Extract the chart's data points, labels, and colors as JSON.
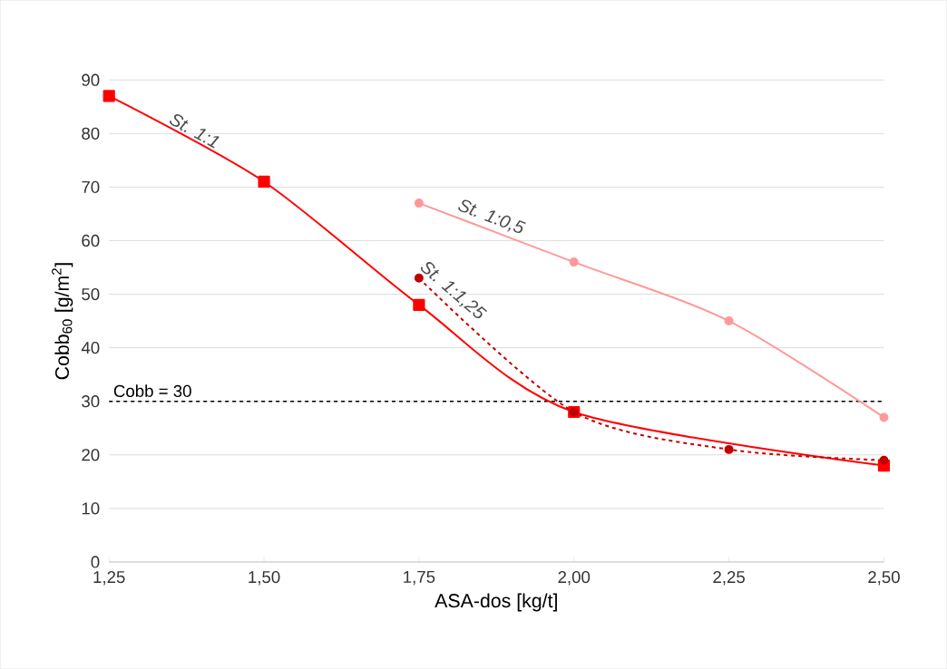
{
  "chart_data": {
    "type": "line",
    "xlabel": "ASA-dos [kg/t]",
    "ylabel": "Cobb$_{60}$ [g/m$^{2}$]",
    "xlim": [
      1.25,
      2.5
    ],
    "ylim": [
      0,
      90
    ],
    "xticks": [
      {
        "value": 1.25,
        "label": "1,25"
      },
      {
        "value": 1.5,
        "label": "1,50"
      },
      {
        "value": 1.75,
        "label": "1,75"
      },
      {
        "value": 2.0,
        "label": "2,00"
      },
      {
        "value": 2.25,
        "label": "2,25"
      },
      {
        "value": 2.5,
        "label": "2,50"
      }
    ],
    "yticks": [
      0,
      10,
      20,
      30,
      40,
      50,
      60,
      70,
      80,
      90
    ],
    "grid": "y",
    "series": [
      {
        "name": "St. 1:1",
        "color": "#ff0000",
        "marker": "square",
        "line_style": "solid",
        "x": [
          1.25,
          1.5,
          1.75,
          2.0,
          2.5
        ],
        "values": [
          87,
          71,
          48,
          28,
          18
        ]
      },
      {
        "name": "St. 1:1,25",
        "color": "#c00000",
        "marker": "circle",
        "line_style": "dashed",
        "x": [
          1.75,
          2.0,
          2.25,
          2.5
        ],
        "values": [
          53,
          28,
          21,
          19
        ]
      },
      {
        "name": "St. 1:0,5",
        "color": "#ff9999",
        "marker": "circle",
        "line_style": "solid",
        "x": [
          1.75,
          2.0,
          2.25,
          2.5
        ],
        "values": [
          67,
          56,
          45,
          27
        ]
      }
    ],
    "ref_lines": [
      {
        "axis": "y",
        "value": 30,
        "label": "Cobb = 30",
        "color": "#000000",
        "line_style": "dashed"
      }
    ]
  }
}
